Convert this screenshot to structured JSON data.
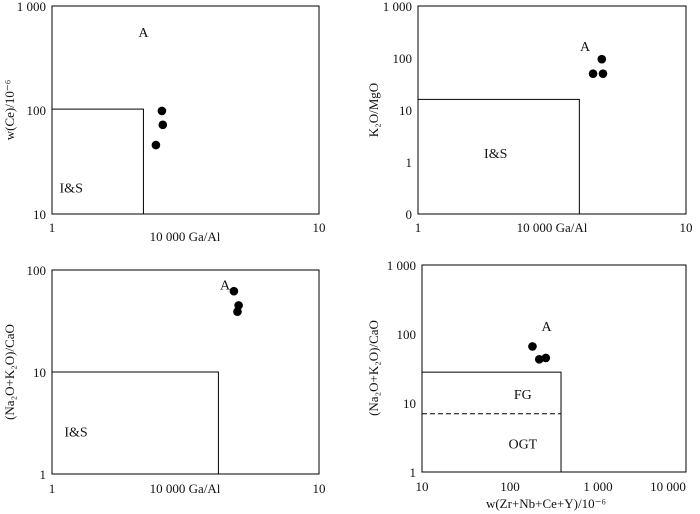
{
  "chart_data": [
    {
      "type": "scatter",
      "xscale": "log",
      "yscale": "log",
      "xlim": [
        1,
        10
      ],
      "ylim": [
        10,
        1000
      ],
      "xlabel": "10 000 Ga/Al",
      "ylabel": "w(Ce)/10⁻⁶",
      "xticks": [
        {
          "v": 1,
          "label": "1"
        },
        {
          "v": 10,
          "label": "10"
        }
      ],
      "yticks": [
        {
          "v": 10,
          "label": "10"
        },
        {
          "v": 100,
          "label": "100"
        },
        {
          "v": 1000,
          "label": "1 000"
        }
      ],
      "points": [
        {
          "x": 2.45,
          "y": 46
        },
        {
          "x": 2.6,
          "y": 72
        },
        {
          "x": 2.58,
          "y": 98
        }
      ],
      "field_box": {
        "x_max": 2.2,
        "y_max": 102
      },
      "fields": [
        {
          "label": "A",
          "x": 2.2,
          "y": 560
        },
        {
          "label": "I&S",
          "x": 1.18,
          "y": 18
        }
      ]
    },
    {
      "type": "scatter",
      "xscale": "log",
      "yscale": "symlog",
      "xlim": [
        1,
        10
      ],
      "ylim": [
        0,
        1000
      ],
      "xlabel": "10 000 Ga/Al",
      "ylabel": "K₂O/MgO",
      "xticks": [
        {
          "v": 1,
          "label": "1"
        },
        {
          "v": 10,
          "label": "10"
        }
      ],
      "yticks": [
        {
          "v": 0,
          "label": "0"
        },
        {
          "v": 1,
          "label": "1"
        },
        {
          "v": 10,
          "label": "10"
        },
        {
          "v": 100,
          "label": "100"
        },
        {
          "v": 1000,
          "label": "1 000"
        }
      ],
      "points": [
        {
          "x": 4.5,
          "y": 50
        },
        {
          "x": 4.9,
          "y": 50
        },
        {
          "x": 4.85,
          "y": 95
        }
      ],
      "field_box": {
        "x_max": 4.0,
        "y_max": 16
      },
      "fields": [
        {
          "label": "A",
          "x": 4.2,
          "y": 170
        },
        {
          "label": "I&S",
          "x": 1.95,
          "y": 1.5
        }
      ]
    },
    {
      "type": "scatter",
      "xscale": "log",
      "yscale": "log",
      "xlim": [
        1,
        10
      ],
      "ylim": [
        1,
        100
      ],
      "xlabel": "10 000 Ga/Al",
      "ylabel": "(Na₂O+K₂O)/CaO",
      "xticks": [
        {
          "v": 1,
          "label": "1"
        },
        {
          "v": 10,
          "label": "10"
        }
      ],
      "yticks": [
        {
          "v": 1,
          "label": "1"
        },
        {
          "v": 10,
          "label": "10"
        },
        {
          "v": 100,
          "label": "100"
        }
      ],
      "points": [
        {
          "x": 4.8,
          "y": 62
        },
        {
          "x": 5.0,
          "y": 45
        },
        {
          "x": 4.95,
          "y": 39
        }
      ],
      "field_box": {
        "x_max": 4.2,
        "y_max": 10
      },
      "fields": [
        {
          "label": "A",
          "x": 4.45,
          "y": 72
        },
        {
          "label": "I&S",
          "x": 1.23,
          "y": 2.6
        }
      ]
    },
    {
      "type": "scatter",
      "xscale": "log",
      "yscale": "log",
      "xlim": [
        10,
        10000
      ],
      "ylim": [
        1,
        1000
      ],
      "xlabel": "w(Zr+Nb+Ce+Y)/10⁻⁶",
      "ylabel": "(Na₂O+K₂O)/CaO",
      "xticks": [
        {
          "v": 10,
          "label": "10"
        },
        {
          "v": 100,
          "label": "100"
        },
        {
          "v": 1000,
          "label": "1 000"
        },
        {
          "v": 10000,
          "label": "10 000"
        }
      ],
      "yticks": [
        {
          "v": 1,
          "label": "1"
        },
        {
          "v": 10,
          "label": "10"
        },
        {
          "v": 100,
          "label": "100"
        },
        {
          "v": 1000,
          "label": "1 000"
        }
      ],
      "points": [
        {
          "x": 180,
          "y": 66
        },
        {
          "x": 215,
          "y": 43
        },
        {
          "x": 255,
          "y": 45
        }
      ],
      "field_box": {
        "x_max": 380,
        "y_max": 28
      },
      "dashed_line": {
        "y": 7
      },
      "fields": [
        {
          "label": "A",
          "x": 260,
          "y": 130
        },
        {
          "label": "FG",
          "x": 140,
          "y": 13.5
        },
        {
          "label": "OGT",
          "x": 140,
          "y": 2.6
        }
      ]
    }
  ]
}
